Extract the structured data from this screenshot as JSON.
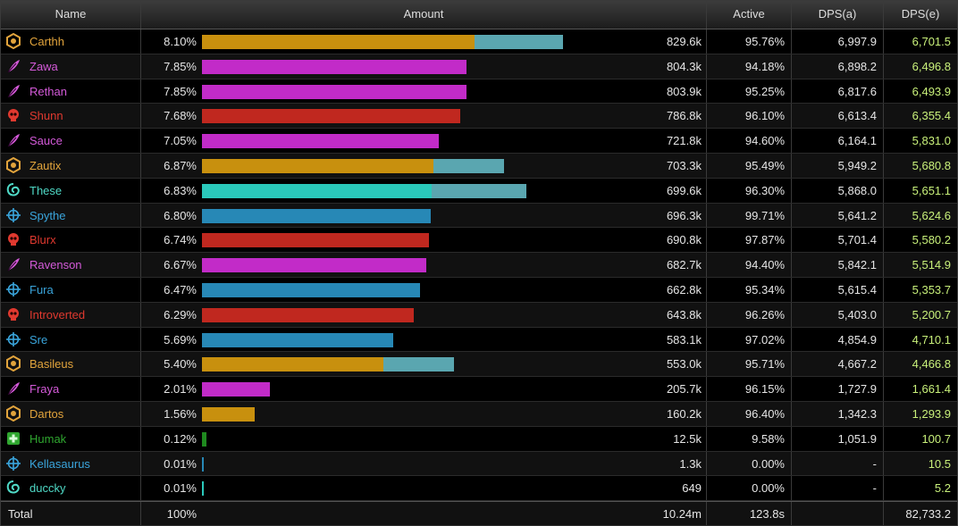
{
  "header": {
    "name": "Name",
    "amount": "Amount",
    "active": "Active",
    "dps_a": "DPS(a)",
    "dps_e": "DPS(e)"
  },
  "classes": {
    "gold": {
      "color": "#e2a43c",
      "bar": "#c8900e",
      "icon": "hexagon-shield-icon"
    },
    "purple": {
      "color": "#d45ad9",
      "bar": "#c22bc8",
      "icon": "feather-icon"
    },
    "red": {
      "color": "#e0392f",
      "bar": "#c0281f",
      "icon": "skull-icon"
    },
    "teal": {
      "color": "#4fd9c6",
      "bar": "#2ac9bb",
      "icon": "spiral-icon"
    },
    "blue": {
      "color": "#3aa5dc",
      "bar": "#2788b6",
      "icon": "crosshair-icon"
    },
    "green": {
      "color": "#2fa62f",
      "bar": "#1f8a1f",
      "icon": "medic-cross-icon"
    }
  },
  "overflow_color": "#5aa6b0",
  "rows": [
    {
      "name": "Carthh",
      "cls": "gold",
      "pct": "8.10%",
      "amount": "829.6k",
      "active": "95.76%",
      "dps_a": "6,997.9",
      "dps_e": "6,701.5",
      "share": 8.1,
      "extra": 0.75
    },
    {
      "name": "Zawa",
      "cls": "purple",
      "pct": "7.85%",
      "amount": "804.3k",
      "active": "94.18%",
      "dps_a": "6,898.2",
      "dps_e": "6,496.8",
      "share": 7.85,
      "extra": 0
    },
    {
      "name": "Rethan",
      "cls": "purple",
      "pct": "7.85%",
      "amount": "803.9k",
      "active": "95.25%",
      "dps_a": "6,817.6",
      "dps_e": "6,493.9",
      "share": 7.85,
      "extra": 0
    },
    {
      "name": "Shunn",
      "cls": "red",
      "pct": "7.68%",
      "amount": "786.8k",
      "active": "96.10%",
      "dps_a": "6,613.4",
      "dps_e": "6,355.4",
      "share": 7.68,
      "extra": 0
    },
    {
      "name": "Sauce",
      "cls": "purple",
      "pct": "7.05%",
      "amount": "721.8k",
      "active": "94.60%",
      "dps_a": "6,164.1",
      "dps_e": "5,831.0",
      "share": 7.05,
      "extra": 0
    },
    {
      "name": "Zautix",
      "cls": "gold",
      "pct": "6.87%",
      "amount": "703.3k",
      "active": "95.49%",
      "dps_a": "5,949.2",
      "dps_e": "5,680.8",
      "share": 6.87,
      "extra": 0.6
    },
    {
      "name": "These",
      "cls": "teal",
      "pct": "6.83%",
      "amount": "699.6k",
      "active": "96.30%",
      "dps_a": "5,868.0",
      "dps_e": "5,651.1",
      "share": 6.83,
      "extra": 0.8
    },
    {
      "name": "Spythe",
      "cls": "blue",
      "pct": "6.80%",
      "amount": "696.3k",
      "active": "99.71%",
      "dps_a": "5,641.2",
      "dps_e": "5,624.6",
      "share": 6.8,
      "extra": 0
    },
    {
      "name": "Blurx",
      "cls": "red",
      "pct": "6.74%",
      "amount": "690.8k",
      "active": "97.87%",
      "dps_a": "5,701.4",
      "dps_e": "5,580.2",
      "share": 6.74,
      "extra": 0
    },
    {
      "name": "Ravenson",
      "cls": "purple",
      "pct": "6.67%",
      "amount": "682.7k",
      "active": "94.40%",
      "dps_a": "5,842.1",
      "dps_e": "5,514.9",
      "share": 6.67,
      "extra": 0
    },
    {
      "name": "Fura",
      "cls": "blue",
      "pct": "6.47%",
      "amount": "662.8k",
      "active": "95.34%",
      "dps_a": "5,615.4",
      "dps_e": "5,353.7",
      "share": 6.47,
      "extra": 0
    },
    {
      "name": "Introverted",
      "cls": "red",
      "pct": "6.29%",
      "amount": "643.8k",
      "active": "96.26%",
      "dps_a": "5,403.0",
      "dps_e": "5,200.7",
      "share": 6.29,
      "extra": 0
    },
    {
      "name": "Sre",
      "cls": "blue",
      "pct": "5.69%",
      "amount": "583.1k",
      "active": "97.02%",
      "dps_a": "4,854.9",
      "dps_e": "4,710.1",
      "share": 5.69,
      "extra": 0
    },
    {
      "name": "Basileus",
      "cls": "gold",
      "pct": "5.40%",
      "amount": "553.0k",
      "active": "95.71%",
      "dps_a": "4,667.2",
      "dps_e": "4,466.8",
      "share": 5.4,
      "extra": 0.6
    },
    {
      "name": "Fraya",
      "cls": "purple",
      "pct": "2.01%",
      "amount": "205.7k",
      "active": "96.15%",
      "dps_a": "1,727.9",
      "dps_e": "1,661.4",
      "share": 2.01,
      "extra": 0
    },
    {
      "name": "Dartos",
      "cls": "gold",
      "pct": "1.56%",
      "amount": "160.2k",
      "active": "96.40%",
      "dps_a": "1,342.3",
      "dps_e": "1,293.9",
      "share": 1.56,
      "extra": 0
    },
    {
      "name": "Humak",
      "cls": "green",
      "pct": "0.12%",
      "amount": "12.5k",
      "active": "9.58%",
      "dps_a": "1,051.9",
      "dps_e": "100.7",
      "share": 0.12,
      "extra": 0
    },
    {
      "name": "Kellasaurus",
      "cls": "blue",
      "pct": "0.01%",
      "amount": "1.3k",
      "active": "0.00%",
      "dps_a": "-",
      "dps_e": "10.5",
      "share": 0.01,
      "extra": 0
    },
    {
      "name": "duccky",
      "cls": "teal",
      "pct": "0.01%",
      "amount": "649",
      "active": "0.00%",
      "dps_a": "-",
      "dps_e": "5.2",
      "share": 0.01,
      "extra": 0
    }
  ],
  "total": {
    "label": "Total",
    "pct": "100%",
    "amount": "10.24m",
    "active": "123.8s",
    "dps_a": "",
    "dps_e": "82,733.2"
  }
}
